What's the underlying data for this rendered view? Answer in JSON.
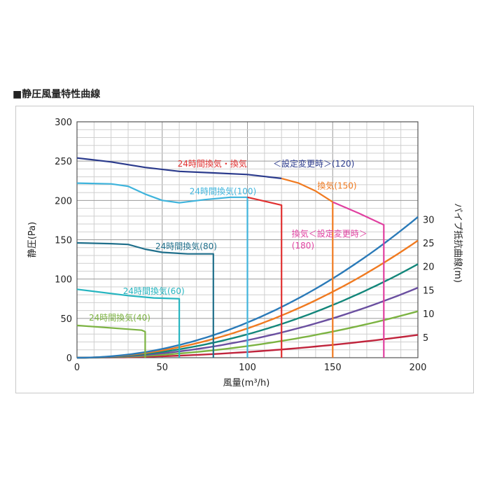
{
  "heading": "■静圧風量特性曲線",
  "chart_data": {
    "type": "line",
    "xlabel": "風量(m³/h)",
    "ylabel": "静圧(Pa)",
    "y2label": "パイプ抵抗曲線(m)",
    "xlim": [
      0,
      200
    ],
    "ylim": [
      0,
      300
    ],
    "x_ticks": [
      "0",
      "50",
      "100",
      "150",
      "200"
    ],
    "y_ticks": [
      "0",
      "50",
      "100",
      "150",
      "200",
      "250",
      "300"
    ],
    "y2_ticks": [
      "5",
      "10",
      "15",
      "20",
      "25",
      "30"
    ],
    "grid": true,
    "fan_curves": [
      {
        "label": "24時間換気(40)",
        "color": "#7cb342",
        "points": [
          [
            0,
            41
          ],
          [
            38,
            35
          ],
          [
            40,
            33
          ],
          [
            40,
            0
          ]
        ]
      },
      {
        "label": "24時間換気(60)",
        "color": "#26b5c0",
        "points": [
          [
            0,
            87
          ],
          [
            30,
            79
          ],
          [
            45,
            76
          ],
          [
            60,
            75
          ],
          [
            60,
            0
          ]
        ]
      },
      {
        "label": "24時間換気(80)",
        "color": "#1f6f8b",
        "points": [
          [
            0,
            146
          ],
          [
            20,
            145
          ],
          [
            30,
            144
          ],
          [
            40,
            138
          ],
          [
            50,
            134
          ],
          [
            65,
            132
          ],
          [
            80,
            132
          ],
          [
            80,
            0
          ]
        ]
      },
      {
        "label": "24時間換気(100)",
        "color": "#3fb4dc",
        "points": [
          [
            0,
            222
          ],
          [
            20,
            221
          ],
          [
            30,
            218
          ],
          [
            40,
            208
          ],
          [
            50,
            200
          ],
          [
            60,
            197
          ],
          [
            75,
            201
          ],
          [
            90,
            204
          ],
          [
            100,
            204
          ],
          [
            100,
            0
          ]
        ]
      },
      {
        "label": "24時間換気・換気＜設定変更時＞(120)",
        "color": "#e03030",
        "points": [
          [
            100,
            204
          ],
          [
            120,
            194
          ],
          [
            120,
            0
          ]
        ]
      },
      {
        "label": "24時間換気・換気＜設定変更時＞(120)",
        "color": "#2a3a8c",
        "points": [
          [
            0,
            254
          ],
          [
            20,
            249
          ],
          [
            40,
            242
          ],
          [
            60,
            237
          ],
          [
            80,
            235
          ],
          [
            100,
            233
          ],
          [
            120,
            228
          ]
        ]
      },
      {
        "label": "換気(150)",
        "color": "#f07a20",
        "points": [
          [
            120,
            228
          ],
          [
            130,
            222
          ],
          [
            140,
            212
          ],
          [
            150,
            198
          ],
          [
            150,
            0
          ]
        ]
      },
      {
        "label": "換気＜設定変更時＞(180)",
        "color": "#e040a0",
        "points": [
          [
            150,
            198
          ],
          [
            165,
            184
          ],
          [
            180,
            169
          ],
          [
            180,
            0
          ]
        ]
      }
    ],
    "pipe_curves": [
      {
        "length": 5,
        "color": "#c0243c",
        "y_at_200": 29
      },
      {
        "length": 10,
        "color": "#7cb342",
        "y_at_200": 59
      },
      {
        "length": 15,
        "color": "#6a4fa0",
        "y_at_200": 89
      },
      {
        "length": 20,
        "color": "#12867a",
        "y_at_200": 119
      },
      {
        "length": 25,
        "color": "#f07a20",
        "y_at_200": 149
      },
      {
        "length": 30,
        "color": "#2a7ab8",
        "y_at_200": 179
      }
    ],
    "labels": [
      {
        "text": "24時間換気(40)",
        "color": "#7cb342",
        "at": [
          7,
          47
        ]
      },
      {
        "text": "24時間換気(60)",
        "color": "#26b5c0",
        "at": [
          27,
          81
        ]
      },
      {
        "text": "24時間換気(80)",
        "color": "#1f6f8b",
        "at": [
          46,
          138
        ]
      },
      {
        "text": "24時間換気(100)",
        "color": "#3fb4dc",
        "at": [
          66,
          208
        ]
      },
      {
        "text": "24時間換気・換気",
        "color": "#e03030",
        "at": [
          59,
          243
        ]
      },
      {
        "text": "＜設定変更時＞(120)",
        "color": "#2a3a8c",
        "at": [
          115,
          243
        ]
      },
      {
        "text": "換気(150)",
        "color": "#f07a20",
        "at": [
          141,
          215
        ]
      },
      {
        "text": "換気＜設定変更時＞",
        "color": "#e040a0",
        "at": [
          126,
          154
        ]
      },
      {
        "text": "(180)",
        "color": "#e040a0",
        "at": [
          126,
          139
        ]
      }
    ]
  }
}
